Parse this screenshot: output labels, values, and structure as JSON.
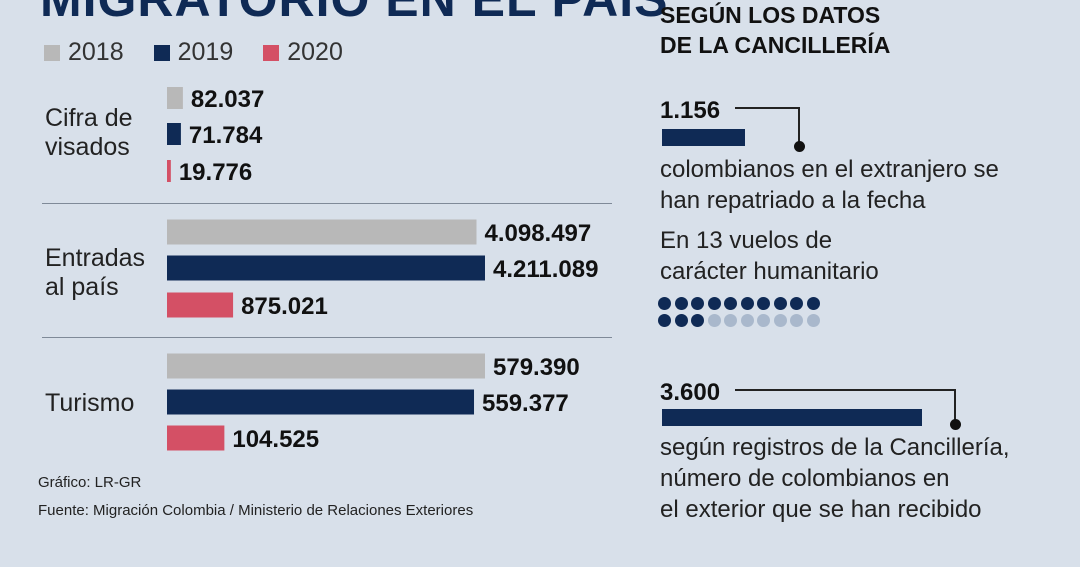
{
  "title": "MIGRATORIO EN EL PAÍS",
  "legend": [
    {
      "label": "2018",
      "color": "#b8b8b8"
    },
    {
      "label": "2019",
      "color": "#0f2a55"
    },
    {
      "label": "2020",
      "color": "#d45065"
    }
  ],
  "chart_data": {
    "type": "bar",
    "orientation": "horizontal",
    "categories": [
      "Cifra de\nvisados",
      "Entradas\nal país",
      "Turismo"
    ],
    "series": [
      {
        "name": "2018",
        "color": "#b8b8b8",
        "values": [
          82037,
          4098497,
          579390
        ],
        "labels": [
          "82.037",
          "4.098.497",
          "579.390"
        ]
      },
      {
        "name": "2019",
        "color": "#0f2a55",
        "values": [
          71784,
          4211089,
          559377
        ],
        "labels": [
          "71.784",
          "4.211.089",
          "559.377"
        ]
      }
    ],
    "series_2020": {
      "name": "2020",
      "color": "#d45065",
      "values": [
        19776,
        875021,
        104525
      ],
      "labels": [
        "19.776",
        "875.021",
        "104.525"
      ]
    },
    "note": "each category group uses its own bar scale"
  },
  "footer": {
    "credit": "Gráfico: LR-GR",
    "source": "Fuente: Migración Colombia / Ministerio de Relaciones Exteriores"
  },
  "right": {
    "title": "SEGÚN LOS DATOS\nDE LA CANCILLERÍA",
    "repatriated": {
      "value": "1.156",
      "number": 1156,
      "text": "colombianos en el extranjero se\nhan repatriado a la fecha"
    },
    "flights": {
      "text": "En 13 vuelos de\ncarácter humanitario",
      "total": 20,
      "highlighted": 13,
      "dark_color": "#0f2a55",
      "light_color": "#a9b8cc"
    },
    "received": {
      "value": "3.600",
      "number": 3600,
      "text": "según registros de la Cancillería,\nnúmero de colombianos en\nel exterior que se han recibido"
    }
  }
}
